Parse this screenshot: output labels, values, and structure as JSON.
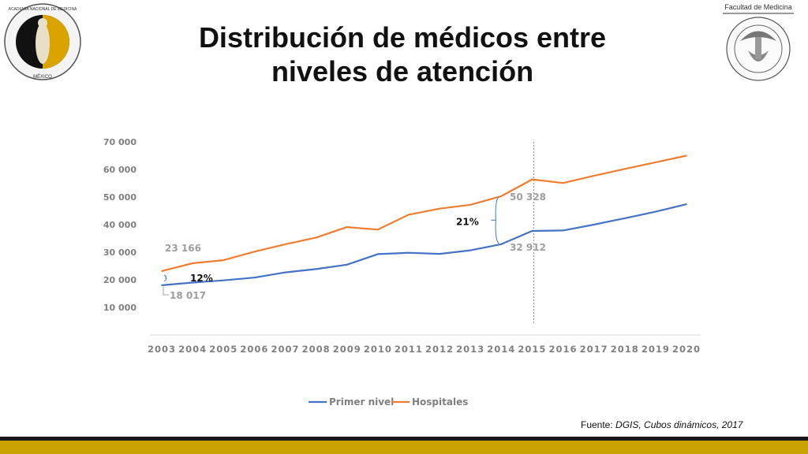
{
  "slide": {
    "title_line1": "Distribución de médicos entre",
    "title_line2": "niveles de atención",
    "left_logo_text_top": "ACADEMIA NACIONAL DE MEDICINA",
    "left_logo_text_bottom": "MÉXICO",
    "right_logo_label": "Facultad de Medicina",
    "source_prefix": "Fuente: ",
    "source_italic": "DGIS, Cubos dinámicos, 2017",
    "colors": {
      "gold": "#c9a400",
      "dark": "#1a1a1a"
    }
  },
  "chart_data": {
    "type": "line",
    "categories": [
      "2003",
      "2004",
      "2005",
      "2006",
      "2007",
      "2008",
      "2009",
      "2010",
      "2011",
      "2012",
      "2013",
      "2014",
      "2015",
      "2016",
      "2017",
      "2018",
      "2019",
      "2020"
    ],
    "series": [
      {
        "name": "Primer nivel",
        "color": "#4472c4",
        "values": [
          18017,
          19000,
          19800,
          20800,
          22700,
          23900,
          25500,
          29300,
          29800,
          29400,
          30700,
          32912,
          37700,
          37900,
          40000,
          42300,
          44700,
          47400
        ]
      },
      {
        "name": "Hospitales",
        "color": "#ed7d31",
        "values": [
          23166,
          26000,
          27100,
          30200,
          32900,
          35300,
          39100,
          38200,
          43600,
          45800,
          47200,
          50328,
          56400,
          55100,
          57700,
          60200,
          62600,
          65000
        ]
      }
    ],
    "ylim": [
      0,
      70000
    ],
    "yticks": [
      "10 000",
      "20 000",
      "30 000",
      "40 000",
      "50 000",
      "60 000",
      "70 000"
    ],
    "ytick_values": [
      10000,
      20000,
      30000,
      40000,
      50000,
      60000,
      70000
    ],
    "grid": false,
    "legend": "bottom",
    "vline_category": "2015",
    "annotations": {
      "start_hosp": "23 166",
      "start_primer": "18 017",
      "start_pct": "12%",
      "mid_hosp": "50 328",
      "mid_primer": "32 912",
      "mid_pct": "21%"
    }
  }
}
